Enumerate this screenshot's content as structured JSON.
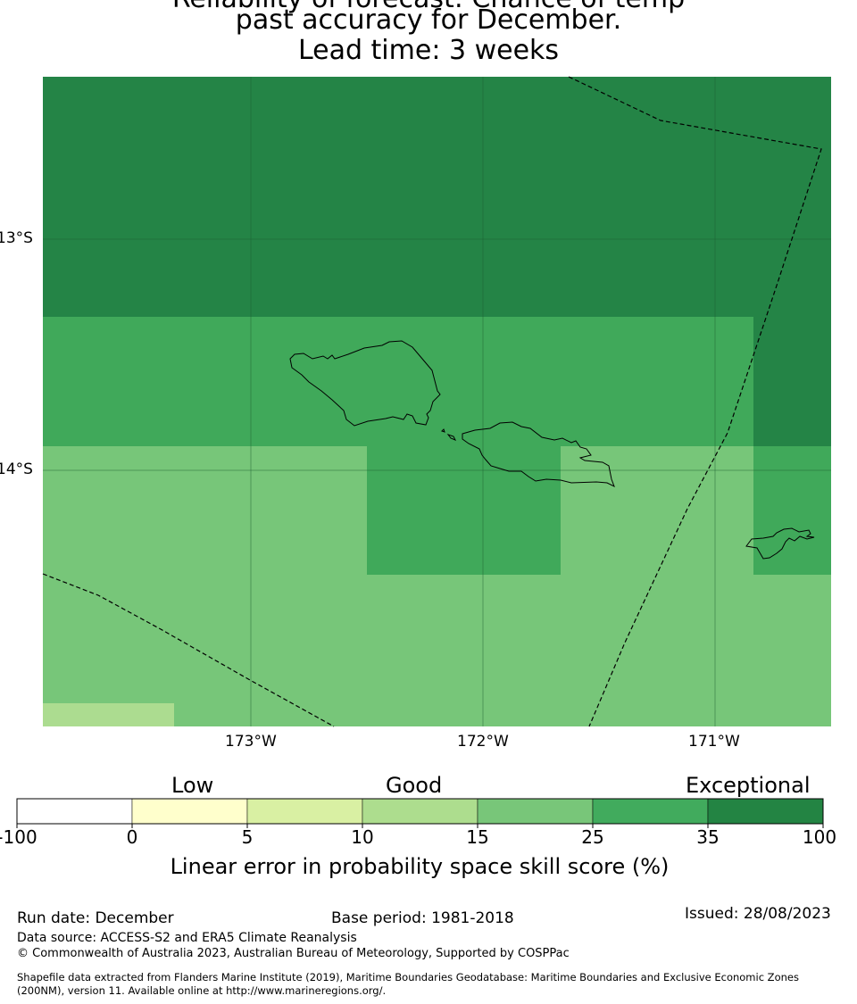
{
  "header": {
    "title_line_1": "Reliability of forecast: Chance of temp",
    "title_line_2": "past accuracy for December.",
    "title_line_3": "Lead time: 3 weeks"
  },
  "map": {
    "lon_labels": [
      "173°W",
      "172°W",
      "171°W"
    ],
    "lat_labels": [
      "13°S",
      "14°S"
    ],
    "grid_colors": {
      "very_dark": "#248446",
      "dark": "#40a95a",
      "mid": "#77c679",
      "light": "#acdc90"
    }
  },
  "legend": {
    "category_labels": [
      "Low",
      "Good",
      "Exceptional"
    ],
    "tick_labels": [
      "-100",
      "0",
      "5",
      "10",
      "15",
      "25",
      "35",
      "100"
    ],
    "colors": [
      "#ffffff",
      "#ffffcc",
      "#d9f0a3",
      "#addd8e",
      "#78c679",
      "#41ab5d",
      "#238443"
    ],
    "axis_label": "Linear error in probability space skill score (%)"
  },
  "footer": {
    "run_date": "Run date: December",
    "base_period": "Base period: 1981-2018",
    "issued": "Issued: 28/08/2023",
    "data_source": "Data source: ACCESS-S2 and ERA5 Climate Reanalysis",
    "copyright": "© Commonwealth of Australia 2023, Australian Bureau of Meteorology, Supported by COSPPac",
    "shapefile_line_1": "Shapefile data extracted from Flanders Marine Institute (2019), Maritime Boundaries Geodatabase: Maritime Boundaries and Exclusive Economic Zones",
    "shapefile_line_2": "(200NM), version 11. Available online at http://www.marineregions.org/."
  }
}
